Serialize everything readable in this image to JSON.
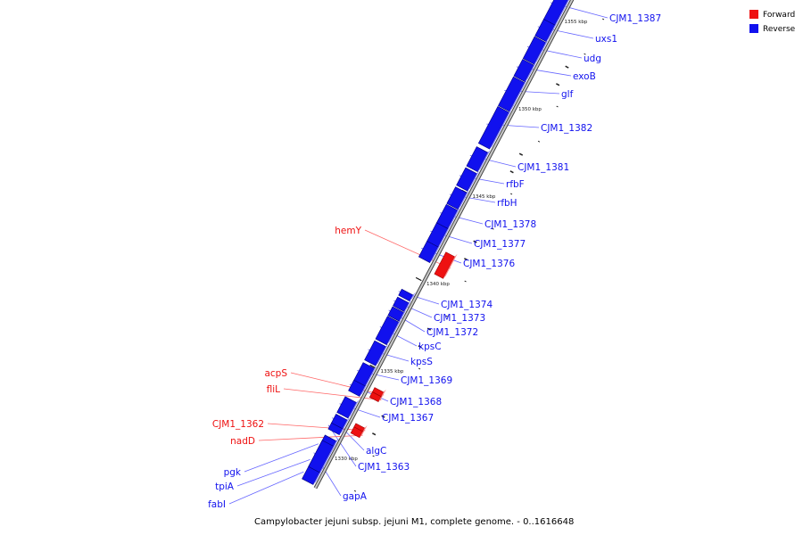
{
  "caption": "Campylobacter jejuni subsp. jejuni M1, complete genome. - 0..1616648",
  "legend": {
    "forward_label": "Forward",
    "reverse_label": "Reverse",
    "forward_color": "#ee1111",
    "reverse_color": "#1111ee"
  },
  "leader_colors": {
    "forward": "#ff6666",
    "reverse": "#6666ff",
    "axis": "#888888"
  },
  "backbone": {
    "start_kbp": 1328.2,
    "end_kbp": 1360.2
  },
  "ticks": [
    {
      "kbp": 1330,
      "label": "1330 kbp"
    },
    {
      "kbp": 1335,
      "label": "1335 kbp"
    },
    {
      "kbp": 1340,
      "label": "1340 kbp"
    },
    {
      "kbp": 1345,
      "label": "1345 kbp"
    },
    {
      "kbp": 1350,
      "label": "1350 kbp"
    },
    {
      "kbp": 1355,
      "label": "1355 kbp"
    }
  ],
  "genes": [
    {
      "name": "fabI",
      "strand": "reverse",
      "start": 1328.3,
      "end": 1329.0
    },
    {
      "name": "tpiA",
      "strand": "reverse",
      "start": 1329.0,
      "end": 1329.7
    },
    {
      "name": "pgk",
      "strand": "reverse",
      "start": 1329.7,
      "end": 1330.8
    },
    {
      "name": "gapA",
      "strand": "reverse",
      "start": 1329.0,
      "end": 1330.5
    },
    {
      "name": "CJM1_1363",
      "strand": "reverse",
      "start": 1331.15,
      "end": 1331.5
    },
    {
      "name": "algC",
      "strand": "reverse",
      "start": 1331.5,
      "end": 1332.0
    },
    {
      "name": "nadD",
      "strand": "forward",
      "start": 1331.5,
      "end": 1331.85
    },
    {
      "name": "CJM1_1362",
      "strand": "forward",
      "start": 1331.85,
      "end": 1332.05
    },
    {
      "name": "CJM1_1367",
      "strand": "reverse",
      "start": 1332.1,
      "end": 1333.0
    },
    {
      "name": "CJM1_1368",
      "strand": "reverse",
      "start": 1333.35,
      "end": 1333.95
    },
    {
      "name": "fliL",
      "strand": "forward",
      "start": 1333.55,
      "end": 1333.85
    },
    {
      "name": "acpS",
      "strand": "forward",
      "start": 1333.85,
      "end": 1334.1
    },
    {
      "name": "CJM1_1369",
      "strand": "reverse",
      "start": 1333.95,
      "end": 1334.95
    },
    {
      "name": "kpsS",
      "strand": "reverse",
      "start": 1335.1,
      "end": 1336.2
    },
    {
      "name": "kpsC",
      "strand": "reverse",
      "start": 1336.3,
      "end": 1337.6
    },
    {
      "name": "CJM1_1372",
      "strand": "reverse",
      "start": 1337.65,
      "end": 1338.15
    },
    {
      "name": "CJM1_1373",
      "strand": "reverse",
      "start": 1338.2,
      "end": 1338.7
    },
    {
      "name": "CJM1_1374",
      "strand": "reverse",
      "start": 1338.8,
      "end": 1339.15
    },
    {
      "name": "hemY",
      "strand": "forward",
      "start": 1340.6,
      "end": 1341.85
    },
    {
      "name": "CJM1_1376",
      "strand": "reverse",
      "start": 1341.0,
      "end": 1341.9
    },
    {
      "name": "CJM1_1377",
      "strand": "reverse",
      "start": 1341.9,
      "end": 1342.95
    },
    {
      "name": "CJM1_1378",
      "strand": "reverse",
      "start": 1342.95,
      "end": 1344.0
    },
    {
      "name": "rfbH",
      "strand": "reverse",
      "start": 1344.05,
      "end": 1345.0
    },
    {
      "name": "rfbF",
      "strand": "reverse",
      "start": 1345.1,
      "end": 1346.1
    },
    {
      "name": "CJM1_1381",
      "strand": "reverse",
      "start": 1346.2,
      "end": 1347.3
    },
    {
      "name": "CJM1_1382",
      "strand": "reverse",
      "start": 1347.5,
      "end": 1349.6
    },
    {
      "name": "glf",
      "strand": "reverse",
      "start": 1349.65,
      "end": 1351.3
    },
    {
      "name": "exoB",
      "strand": "reverse",
      "start": 1351.35,
      "end": 1352.3
    },
    {
      "name": "udg",
      "strand": "reverse",
      "start": 1352.35,
      "end": 1353.6
    },
    {
      "name": "uxs1",
      "strand": "reverse",
      "start": 1353.65,
      "end": 1354.6
    },
    {
      "name": "CJM1_1387",
      "strand": "reverse",
      "start": 1354.6,
      "end": 1356.4
    }
  ]
}
